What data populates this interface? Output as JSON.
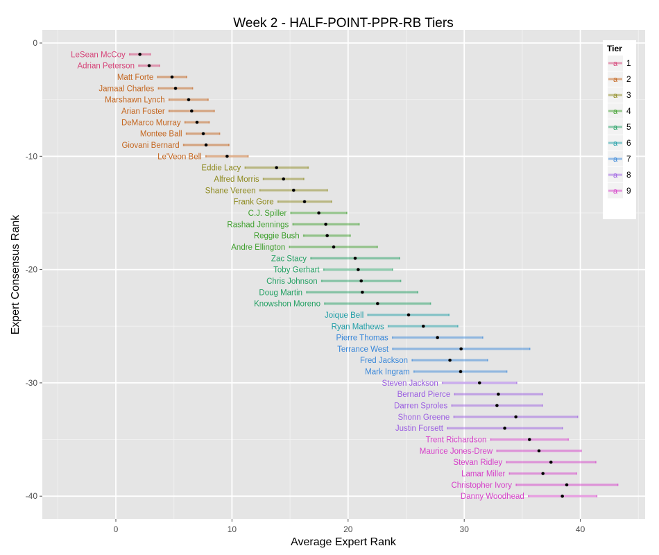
{
  "chart_data": {
    "type": "scatter",
    "subtype": "errorbar-dotplot",
    "title": "Week 2 - HALF-POINT-PPR-RB Tiers",
    "xlabel": "Average Expert Rank",
    "ylabel": "Expert Consensus Rank",
    "xlim": [
      -6.3,
      45.6
    ],
    "ylim": [
      -42.0,
      1.2
    ],
    "x_ticks": [
      0,
      10,
      20,
      30,
      40
    ],
    "y_ticks": [
      0,
      -10,
      -20,
      -30,
      -40
    ],
    "x_minor": [
      -5,
      5,
      15,
      25,
      35,
      45
    ],
    "y_minor": [
      -5,
      -15,
      -25,
      -35
    ],
    "grid": true,
    "legend": {
      "title": "Tier",
      "position": "right-inside",
      "entries": [
        {
          "label": "1",
          "color": "#D6467A"
        },
        {
          "label": "2",
          "color": "#C4661F"
        },
        {
          "label": "3",
          "color": "#8E8A1F"
        },
        {
          "label": "4",
          "color": "#3FA02E"
        },
        {
          "label": "5",
          "color": "#23A063"
        },
        {
          "label": "6",
          "color": "#1E9DA6"
        },
        {
          "label": "7",
          "color": "#3987D9"
        },
        {
          "label": "8",
          "color": "#9B5EE2"
        },
        {
          "label": "9",
          "color": "#D63FC9"
        }
      ]
    },
    "points": [
      {
        "name": "LeSean McCoy",
        "rank": -1,
        "tier": 1,
        "avg": 2.07,
        "lo": 1.18,
        "hi": 2.97
      },
      {
        "name": "Adrian Peterson",
        "rank": -2,
        "tier": 1,
        "avg": 2.87,
        "lo": 1.97,
        "hi": 3.76
      },
      {
        "name": "Matt Forte",
        "rank": -3,
        "tier": 2,
        "avg": 4.84,
        "lo": 3.6,
        "hi": 6.1
      },
      {
        "name": "Jamaal Charles",
        "rank": -4,
        "tier": 2,
        "avg": 5.14,
        "lo": 3.66,
        "hi": 6.61
      },
      {
        "name": "Marshawn Lynch",
        "rank": -5,
        "tier": 2,
        "avg": 6.27,
        "lo": 4.58,
        "hi": 7.95
      },
      {
        "name": "Arian Foster",
        "rank": -6,
        "tier": 2,
        "avg": 6.53,
        "lo": 4.58,
        "hi": 8.48
      },
      {
        "name": "DeMarco Murray",
        "rank": -7,
        "tier": 2,
        "avg": 6.99,
        "lo": 5.95,
        "hi": 8.04
      },
      {
        "name": "Montee Ball",
        "rank": -8,
        "tier": 2,
        "avg": 7.53,
        "lo": 6.07,
        "hi": 8.94
      },
      {
        "name": "Giovani Bernard",
        "rank": -9,
        "tier": 2,
        "avg": 7.77,
        "lo": 5.83,
        "hi": 9.74
      },
      {
        "name": "Le'Veon Bell",
        "rank": -10,
        "tier": 2,
        "avg": 9.58,
        "lo": 7.75,
        "hi": 11.39
      },
      {
        "name": "Eddie Lacy",
        "rank": -11,
        "tier": 3,
        "avg": 13.84,
        "lo": 11.13,
        "hi": 16.57
      },
      {
        "name": "Alfred Morris",
        "rank": -12,
        "tier": 3,
        "avg": 14.44,
        "lo": 12.7,
        "hi": 16.19
      },
      {
        "name": "Shane Vereen",
        "rank": -13,
        "tier": 3,
        "avg": 15.31,
        "lo": 12.4,
        "hi": 18.22
      },
      {
        "name": "Frank Gore",
        "rank": -14,
        "tier": 3,
        "avg": 16.25,
        "lo": 13.96,
        "hi": 18.58
      },
      {
        "name": "C.J. Spiller",
        "rank": -15,
        "tier": 4,
        "avg": 17.48,
        "lo": 15.07,
        "hi": 19.89
      },
      {
        "name": "Rashad Jennings",
        "rank": -16,
        "tier": 4,
        "avg": 18.08,
        "lo": 15.25,
        "hi": 20.95
      },
      {
        "name": "Reggie Bush",
        "rank": -17,
        "tier": 4,
        "avg": 18.2,
        "lo": 16.17,
        "hi": 20.19
      },
      {
        "name": "Andre Ellington",
        "rank": -18,
        "tier": 4,
        "avg": 18.76,
        "lo": 14.95,
        "hi": 22.52
      },
      {
        "name": "Zac Stacy",
        "rank": -19,
        "tier": 5,
        "avg": 20.61,
        "lo": 16.79,
        "hi": 24.43
      },
      {
        "name": "Toby Gerhart",
        "rank": -20,
        "tier": 5,
        "avg": 20.87,
        "lo": 17.9,
        "hi": 23.83
      },
      {
        "name": "Chris Johnson",
        "rank": -21,
        "tier": 5,
        "avg": 21.13,
        "lo": 17.72,
        "hi": 24.53
      },
      {
        "name": "Doug Martin",
        "rank": -22,
        "tier": 5,
        "avg": 21.23,
        "lo": 16.43,
        "hi": 26.0
      },
      {
        "name": "Knowshon Moreno",
        "rank": -23,
        "tier": 5,
        "avg": 22.54,
        "lo": 17.98,
        "hi": 27.1
      },
      {
        "name": "Joique Bell",
        "rank": -24,
        "tier": 6,
        "avg": 25.21,
        "lo": 21.7,
        "hi": 28.69
      },
      {
        "name": "Ryan Mathews",
        "rank": -25,
        "tier": 6,
        "avg": 26.48,
        "lo": 23.46,
        "hi": 29.45
      },
      {
        "name": "Pierre Thomas",
        "rank": -26,
        "tier": 7,
        "avg": 27.7,
        "lo": 23.82,
        "hi": 31.6
      },
      {
        "name": "Terrance West",
        "rank": -27,
        "tier": 7,
        "avg": 29.73,
        "lo": 23.84,
        "hi": 35.65
      },
      {
        "name": "Fred Jackson",
        "rank": -28,
        "tier": 7,
        "avg": 28.77,
        "lo": 25.51,
        "hi": 32.02
      },
      {
        "name": "Mark Ingram",
        "rank": -29,
        "tier": 7,
        "avg": 29.69,
        "lo": 25.67,
        "hi": 33.67
      },
      {
        "name": "Steven Jackson",
        "rank": -30,
        "tier": 8,
        "avg": 31.32,
        "lo": 28.12,
        "hi": 34.53
      },
      {
        "name": "Bernard Pierce",
        "rank": -31,
        "tier": 8,
        "avg": 32.94,
        "lo": 29.17,
        "hi": 36.74
      },
      {
        "name": "Darren Sproles",
        "rank": -32,
        "tier": 8,
        "avg": 32.82,
        "lo": 28.93,
        "hi": 36.74
      },
      {
        "name": "Shonn Greene",
        "rank": -33,
        "tier": 8,
        "avg": 34.45,
        "lo": 29.11,
        "hi": 39.77
      },
      {
        "name": "Justin Forsett",
        "rank": -34,
        "tier": 8,
        "avg": 33.49,
        "lo": 28.55,
        "hi": 38.47
      },
      {
        "name": "Trent Richardson",
        "rank": -35,
        "tier": 9,
        "avg": 35.62,
        "lo": 32.28,
        "hi": 38.97
      },
      {
        "name": "Maurice Jones-Drew",
        "rank": -36,
        "tier": 9,
        "avg": 36.44,
        "lo": 32.81,
        "hi": 40.08
      },
      {
        "name": "Stevan Ridley",
        "rank": -37,
        "tier": 9,
        "avg": 37.47,
        "lo": 33.65,
        "hi": 41.34
      },
      {
        "name": "Lamar Miller",
        "rank": -38,
        "tier": 9,
        "avg": 36.78,
        "lo": 33.89,
        "hi": 39.67
      },
      {
        "name": "Christopher Ivory",
        "rank": -39,
        "tier": 9,
        "avg": 38.83,
        "lo": 34.47,
        "hi": 43.23
      },
      {
        "name": "Danny Woodhead",
        "rank": -40,
        "tier": 9,
        "avg": 38.45,
        "lo": 35.53,
        "hi": 41.42
      }
    ]
  }
}
